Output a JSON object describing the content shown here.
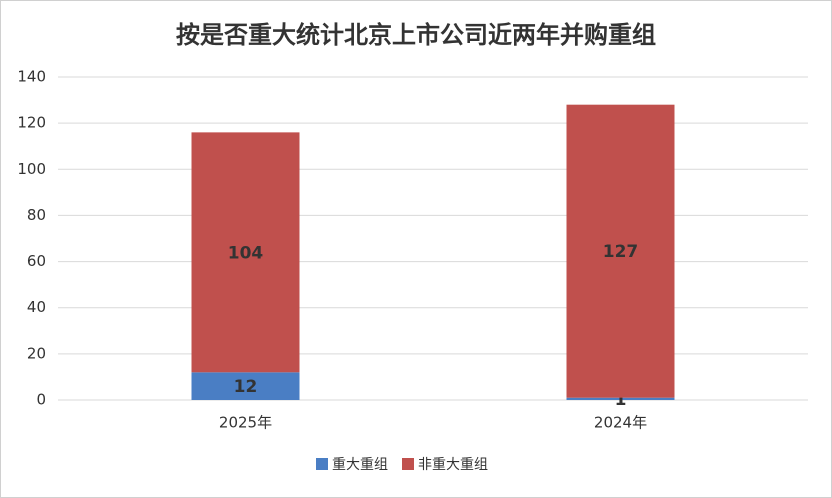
{
  "chart_data": {
    "type": "stacked_bar",
    "title": "按是否重大统计北京上市公司近两年并购重组",
    "categories": [
      "2025年",
      "2024年"
    ],
    "series": [
      {
        "name": "重大重组",
        "color": "#4a7ec4",
        "values": [
          12,
          1
        ]
      },
      {
        "name": "非重大重组",
        "color": "#c0504d",
        "values": [
          104,
          127
        ]
      }
    ],
    "ylim": [
      0,
      140
    ],
    "yticks": [
      0,
      20,
      40,
      60,
      80,
      100,
      120,
      140
    ],
    "grid": true,
    "legend": "bottom"
  }
}
